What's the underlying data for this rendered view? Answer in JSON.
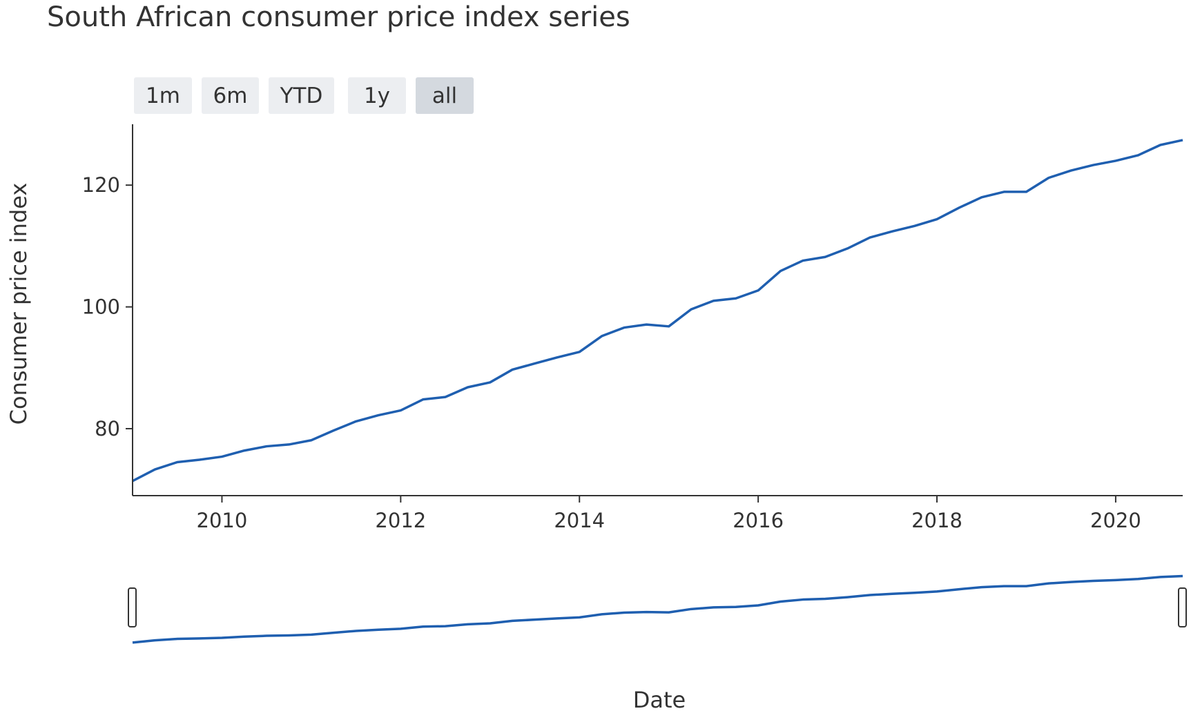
{
  "title": "South African consumer price index series",
  "range_selector": {
    "buttons": [
      {
        "label": "1m",
        "active": false
      },
      {
        "label": "6m",
        "active": false
      },
      {
        "label": "YTD",
        "active": false
      },
      {
        "label": "1y",
        "active": false
      },
      {
        "label": "all",
        "active": true
      }
    ]
  },
  "colors": {
    "line": "#1f5fb0",
    "button_bg": "#eceef1",
    "button_active_bg": "#d4d9df",
    "axis": "#333333"
  },
  "chart_data": {
    "type": "line",
    "title": "South African consumer price index series",
    "xlabel": "Date",
    "ylabel": "Consumer price index",
    "xlim": [
      "2009-01-01",
      "2020-10-01"
    ],
    "ylim": [
      69,
      130
    ],
    "x_ticks": [
      "2010",
      "2012",
      "2014",
      "2016",
      "2018",
      "2020"
    ],
    "y_ticks": [
      "80",
      "100",
      "120"
    ],
    "grid": false,
    "legend": "none",
    "range_slider": true,
    "series": [
      {
        "x": [
          "2009-01",
          "2009-04",
          "2009-07",
          "2009-10",
          "2010-01",
          "2010-04",
          "2010-07",
          "2010-10",
          "2011-01",
          "2011-04",
          "2011-07",
          "2011-10",
          "2012-01",
          "2012-04",
          "2012-07",
          "2012-10",
          "2013-01",
          "2013-04",
          "2013-07",
          "2013-10",
          "2014-01",
          "2014-04",
          "2014-07",
          "2014-10",
          "2015-01",
          "2015-04",
          "2015-07",
          "2015-10",
          "2016-01",
          "2016-04",
          "2016-07",
          "2016-10",
          "2017-01",
          "2017-04",
          "2017-07",
          "2017-10",
          "2018-01",
          "2018-04",
          "2018-07",
          "2018-10",
          "2019-01",
          "2019-04",
          "2019-07",
          "2019-10",
          "2020-01",
          "2020-04",
          "2020-07",
          "2020-10"
        ],
        "y": [
          71.4,
          73.3,
          74.5,
          74.9,
          75.4,
          76.4,
          77.1,
          77.4,
          78.1,
          79.7,
          81.2,
          82.2,
          83.0,
          84.8,
          85.2,
          86.8,
          87.6,
          89.7,
          90.7,
          91.7,
          92.6,
          95.2,
          96.6,
          97.1,
          96.8,
          99.6,
          101.0,
          101.4,
          102.7,
          105.9,
          107.6,
          108.2,
          109.6,
          111.4,
          112.4,
          113.3,
          114.4,
          116.3,
          118.0,
          118.9,
          118.9,
          121.2,
          122.4,
          123.3,
          124.0,
          124.9,
          126.6,
          127.4
        ]
      }
    ]
  }
}
